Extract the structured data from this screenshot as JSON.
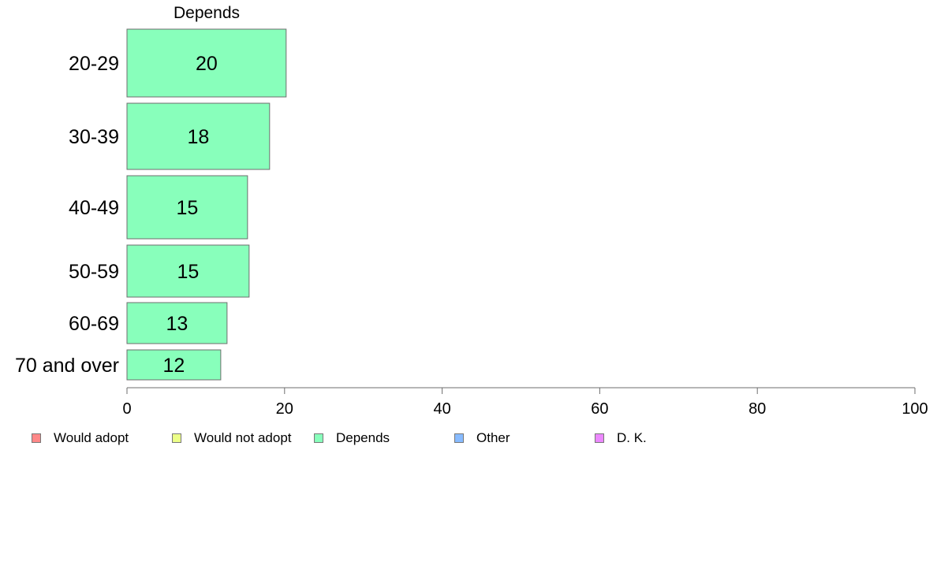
{
  "chart_data": {
    "type": "bar",
    "orientation": "horizontal",
    "panel_title": "Depends",
    "categories": [
      "20-29",
      "30-39",
      "40-49",
      "50-59",
      "60-69",
      "70 and over"
    ],
    "series": [
      {
        "name": "Depends",
        "color": "#88ffbb",
        "values": [
          20.2,
          18.1,
          15.3,
          15.5,
          12.7,
          11.9
        ],
        "labels": [
          "20",
          "18",
          "15",
          "15",
          "13",
          "12"
        ]
      }
    ],
    "xlim": [
      0,
      100
    ],
    "xticks": [
      0,
      20,
      40,
      60,
      80,
      100
    ],
    "grid": false,
    "legend_position": "bottom-left"
  },
  "legend": [
    {
      "label": "Would adopt",
      "color": "#ff8888"
    },
    {
      "label": "Would not adopt",
      "color": "#ecff88"
    },
    {
      "label": "Depends",
      "color": "#88ffbb"
    },
    {
      "label": "Other",
      "color": "#88bbff"
    },
    {
      "label": "D. K.",
      "color": "#ec88ff"
    }
  ]
}
